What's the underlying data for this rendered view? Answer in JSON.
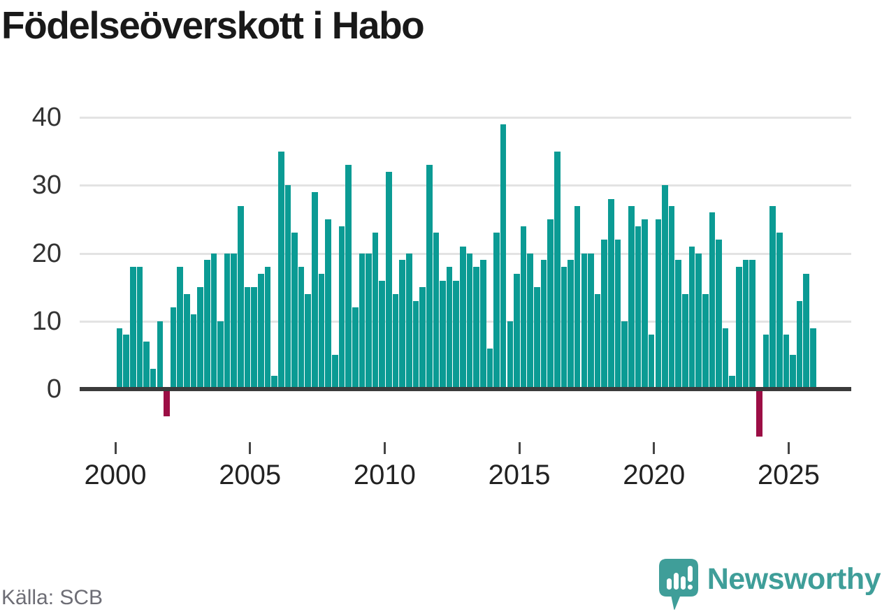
{
  "title": "Födelseöverskott i Habo",
  "source": {
    "label": "Källa: SCB"
  },
  "branding": {
    "wordmark": "Newsworthy",
    "logo_icon": "newsworthy-speech-bubble-bar-chart-icon",
    "logo_color": "#3f9e99"
  },
  "chart_data": {
    "type": "bar",
    "title": "Födelseöverskott i Habo",
    "x_unit": "quarter",
    "start_period": "2000 Q1",
    "end_period": "2025 Q4",
    "x_tick_labels": [
      "2000",
      "2005",
      "2010",
      "2015",
      "2020",
      "2025"
    ],
    "y_ticks": [
      0,
      10,
      20,
      30,
      40
    ],
    "ylim": [
      -8,
      41
    ],
    "grid": "horizontal",
    "legend": "none",
    "colors": {
      "positive": "#0b9b94",
      "negative": "#9c0e45"
    },
    "series": [
      {
        "year": 2000,
        "values": [
          9,
          8,
          18,
          18
        ]
      },
      {
        "year": 2001,
        "values": [
          7,
          3,
          10,
          -4
        ]
      },
      {
        "year": 2002,
        "values": [
          12,
          18,
          14,
          11
        ]
      },
      {
        "year": 2003,
        "values": [
          15,
          19,
          20,
          10
        ]
      },
      {
        "year": 2004,
        "values": [
          20,
          20,
          27,
          15
        ]
      },
      {
        "year": 2005,
        "values": [
          15,
          17,
          18,
          2
        ]
      },
      {
        "year": 2006,
        "values": [
          35,
          30,
          23,
          18
        ]
      },
      {
        "year": 2007,
        "values": [
          14,
          29,
          17,
          25
        ]
      },
      {
        "year": 2008,
        "values": [
          5,
          24,
          33,
          12
        ]
      },
      {
        "year": 2009,
        "values": [
          20,
          20,
          23,
          16
        ]
      },
      {
        "year": 2010,
        "values": [
          32,
          14,
          19,
          20
        ]
      },
      {
        "year": 2011,
        "values": [
          13,
          15,
          33,
          23
        ]
      },
      {
        "year": 2012,
        "values": [
          16,
          18,
          16,
          21
        ]
      },
      {
        "year": 2013,
        "values": [
          20,
          18,
          19,
          6
        ]
      },
      {
        "year": 2014,
        "values": [
          23,
          39,
          10,
          17
        ]
      },
      {
        "year": 2015,
        "values": [
          24,
          20,
          15,
          19
        ]
      },
      {
        "year": 2016,
        "values": [
          25,
          35,
          18,
          19
        ]
      },
      {
        "year": 2017,
        "values": [
          27,
          20,
          20,
          14
        ]
      },
      {
        "year": 2018,
        "values": [
          22,
          28,
          22,
          10
        ]
      },
      {
        "year": 2019,
        "values": [
          27,
          24,
          25,
          8
        ]
      },
      {
        "year": 2020,
        "values": [
          25,
          30,
          27,
          19
        ]
      },
      {
        "year": 2021,
        "values": [
          14,
          21,
          20,
          14
        ]
      },
      {
        "year": 2022,
        "values": [
          26,
          22,
          9,
          2
        ]
      },
      {
        "year": 2023,
        "values": [
          18,
          19,
          19,
          -7
        ]
      },
      {
        "year": 2024,
        "values": [
          8,
          27,
          23,
          8
        ]
      },
      {
        "year": 2025,
        "values": [
          5,
          13,
          17,
          9
        ]
      }
    ]
  }
}
